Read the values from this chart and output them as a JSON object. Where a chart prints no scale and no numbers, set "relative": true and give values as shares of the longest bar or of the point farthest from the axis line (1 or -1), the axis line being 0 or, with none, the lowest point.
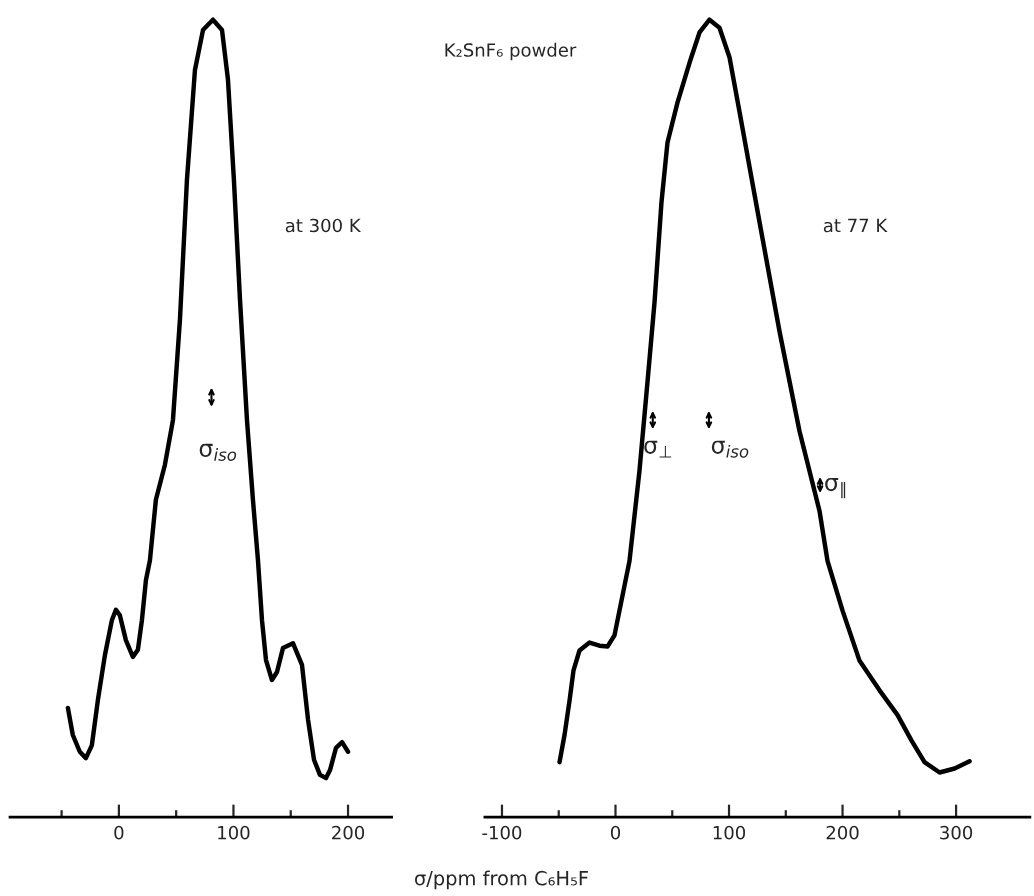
{
  "chart_data": [
    {
      "type": "line",
      "relative": true,
      "xlabel": "σ/ppm from C₆H₅F",
      "xlim": [
        -95,
        238
      ],
      "xticks": [
        {
          "value": -50,
          "label": null
        },
        0,
        {
          "value": 50,
          "label": null
        },
        100,
        {
          "value": 150,
          "label": null
        },
        200
      ],
      "annotations": [
        "at 300 K",
        "σ$_{iso}$"
      ],
      "series": [
        {
          "color": "#000000",
          "x": [
            -44.5,
            -40.2,
            -34.1,
            -28.8,
            -23.6,
            -18.3,
            -12.2,
            -6.1,
            -2.6,
            0.9,
            6.1,
            12.2,
            16.6,
            20.1,
            23.6,
            27.1,
            32.3,
            40.2,
            47.2,
            53.3,
            59.4,
            66.4,
            73.4,
            82.1,
            90,
            95.2,
            100.4,
            105.7,
            111.8,
            117,
            121.4,
            124.9,
            128.4,
            133.6,
            138,
            143.2,
            152,
            159.8,
            165.1,
            170.3,
            175.5,
            180.8,
            184.3,
            189.5,
            194.8,
            200
          ],
          "values": [
            0.137,
            0.103,
            0.082,
            0.074,
            0.09,
            0.147,
            0.203,
            0.247,
            0.26,
            0.253,
            0.222,
            0.201,
            0.21,
            0.247,
            0.297,
            0.322,
            0.398,
            0.442,
            0.498,
            0.624,
            0.799,
            0.937,
            0.987,
            1,
            0.987,
            0.925,
            0.799,
            0.649,
            0.498,
            0.398,
            0.322,
            0.247,
            0.197,
            0.172,
            0.182,
            0.212,
            0.218,
            0.191,
            0.122,
            0.072,
            0.053,
            0.049,
            0.059,
            0.087,
            0.094,
            0.082
          ]
        }
      ]
    },
    {
      "type": "line",
      "relative": true,
      "title": "K₂SnF₆ powder",
      "xlim": [
        -115,
        365
      ],
      "xticks": [
        -100,
        {
          "value": -50,
          "label": null
        },
        0,
        {
          "value": 50,
          "label": null
        },
        100,
        {
          "value": 150,
          "label": null
        },
        200,
        {
          "value": 250,
          "label": null
        },
        300
      ],
      "annotations": [
        "at 77 K",
        "σ$_{⊥}$",
        "σ$_{iso}$",
        "σ$_{∥}$"
      ],
      "series": [
        {
          "color": "#000000",
          "x": [
            -49.3,
            -44.9,
            -40.5,
            -37,
            -31.7,
            -22.9,
            -14.1,
            -7,
            -0.9,
            3.5,
            7.9,
            12.3,
            21.1,
            28.2,
            34.4,
            40.5,
            45.8,
            54.6,
            65.2,
            74,
            82.8,
            91.6,
            100.4,
            109.3,
            126.9,
            144.5,
            162.1,
            179.7,
            186.8,
            200,
            215,
            232.6,
            248.5,
            260.8,
            272.2,
            285.5,
            298.7,
            311.9
          ],
          "values": [
            0.069,
            0.103,
            0.146,
            0.184,
            0.209,
            0.219,
            0.215,
            0.214,
            0.228,
            0.259,
            0.29,
            0.321,
            0.434,
            0.546,
            0.646,
            0.771,
            0.846,
            0.896,
            0.946,
            0.984,
            1,
            0.99,
            0.953,
            0.884,
            0.746,
            0.609,
            0.484,
            0.384,
            0.321,
            0.259,
            0.196,
            0.159,
            0.128,
            0.096,
            0.069,
            0.056,
            0.061,
            0.07
          ]
        }
      ]
    }
  ]
}
